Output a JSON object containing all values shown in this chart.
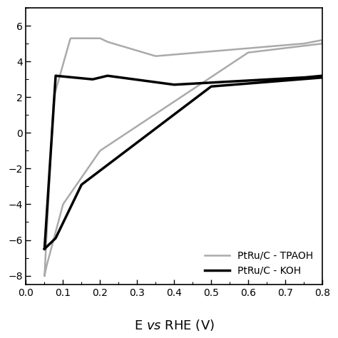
{
  "title": "",
  "xlabel": "E vs RHE (V)",
  "ylabel": "",
  "xlim": [
    0.0,
    0.8
  ],
  "ylim": [
    -8.5,
    7.0
  ],
  "yticks": [
    6,
    4,
    2,
    0,
    -2,
    -4,
    -6,
    -8
  ],
  "xticks": [
    0.0,
    0.1,
    0.2,
    0.3,
    0.4,
    0.5,
    0.6,
    0.7,
    0.8
  ],
  "color_koh": "#000000",
  "color_tpaoh": "#aaaaaa",
  "lw_koh": 2.5,
  "lw_tpaoh": 1.8,
  "legend_labels": [
    "PtRu/C - KOH",
    "PtRu/C - TPAOH"
  ],
  "legend_loc": "lower right"
}
